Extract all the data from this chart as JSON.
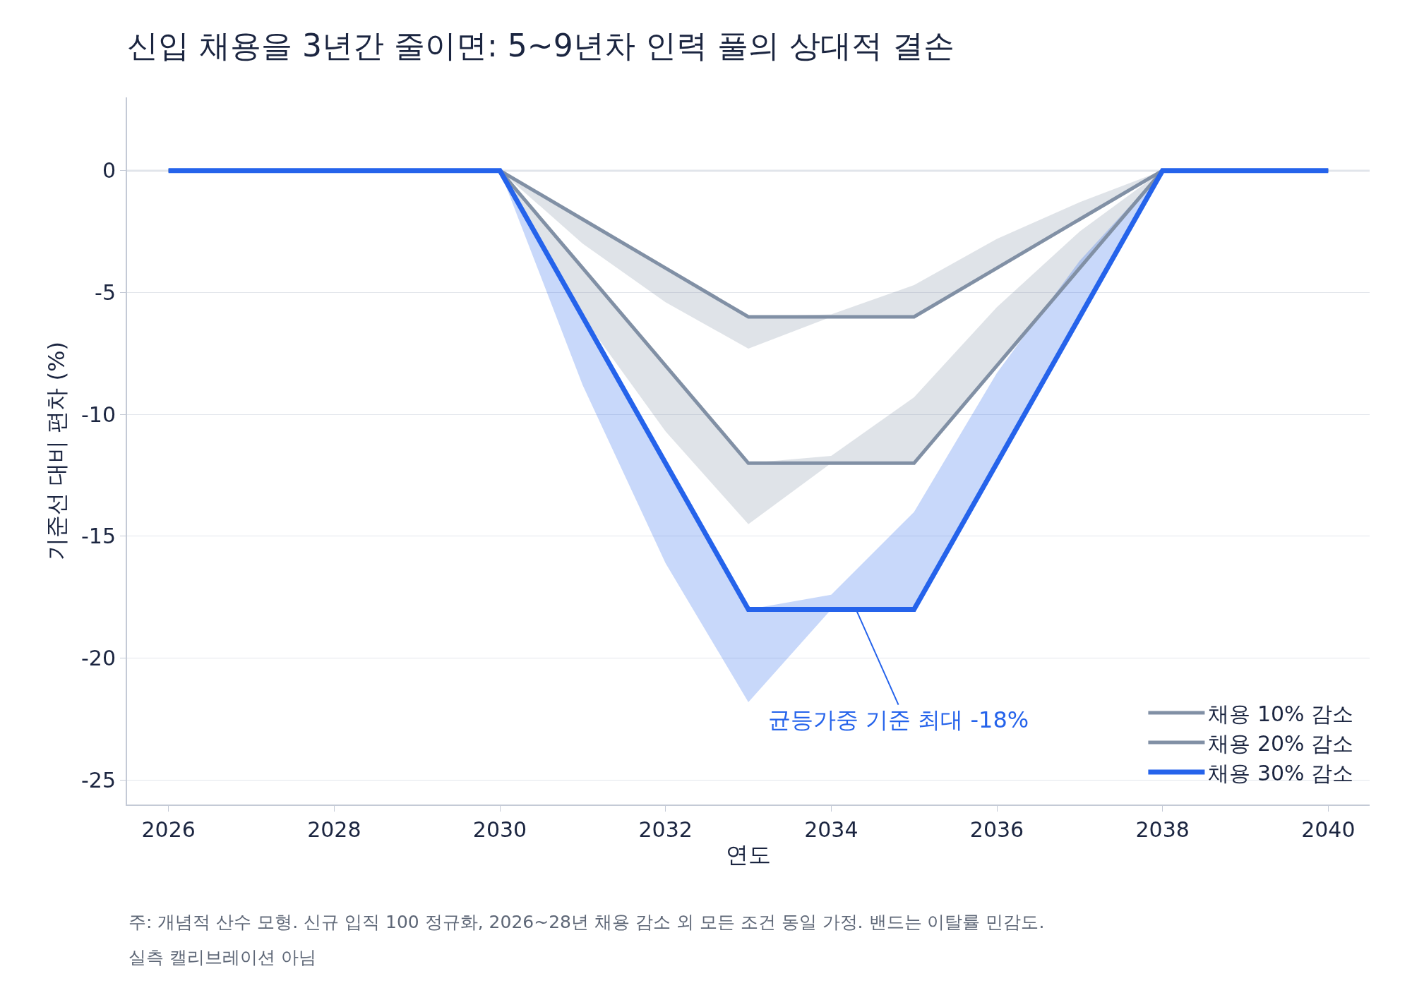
{
  "chart_data": {
    "type": "line",
    "title": "신입 채용을 3년간 줄이면: 5~9년차 인력 풀의 상대적 결손",
    "xlabel": "연도",
    "ylabel": "기준선 대비 편차 (%)",
    "x": [
      2026,
      2027,
      2028,
      2029,
      2030,
      2031,
      2032,
      2033,
      2034,
      2035,
      2036,
      2037,
      2038,
      2039,
      2040
    ],
    "series": [
      {
        "name": "채용 10% 감소",
        "color": "#8190a5",
        "values": [
          0,
          0,
          0,
          0,
          0,
          -2,
          -4,
          -6,
          -6,
          -6,
          -4,
          -2,
          0,
          0,
          0
        ],
        "lower": [
          null,
          null,
          null,
          null,
          0,
          -3.0,
          -5.4,
          -7.3,
          -6.0,
          -6.0,
          -4.0,
          -2.0,
          0,
          null,
          null
        ],
        "upper": [
          null,
          null,
          null,
          null,
          0,
          -2.0,
          -4.0,
          -6.0,
          -5.9,
          -4.7,
          -2.8,
          -1.3,
          0,
          null,
          null
        ]
      },
      {
        "name": "채용 20% 감소",
        "color": "#8190a5",
        "values": [
          0,
          0,
          0,
          0,
          0,
          -4,
          -8,
          -12,
          -12,
          -12,
          -8,
          -4,
          0,
          0,
          0
        ],
        "lower": [
          null,
          null,
          null,
          null,
          0,
          -6.0,
          -10.7,
          -14.5,
          -12.0,
          -12.0,
          -8.0,
          -4.0,
          0,
          null,
          null
        ],
        "upper": [
          null,
          null,
          null,
          null,
          0,
          -4.0,
          -8.0,
          -12.0,
          -11.7,
          -9.3,
          -5.6,
          -2.5,
          0,
          null,
          null
        ]
      },
      {
        "name": "채용 30% 감소",
        "color": "#2563eb",
        "values": [
          0,
          0,
          0,
          0,
          0,
          -6,
          -12,
          -18,
          -18,
          -18,
          -12,
          -6,
          0,
          0,
          0
        ],
        "lower": [
          null,
          null,
          null,
          null,
          0,
          -8.8,
          -16.1,
          -21.8,
          -18.0,
          -18.0,
          -12.0,
          -6.0,
          0,
          null,
          null
        ],
        "upper": [
          null,
          null,
          null,
          null,
          0,
          -6.0,
          -12.0,
          -18.0,
          -17.4,
          -14.0,
          -8.3,
          -3.7,
          0,
          null,
          null
        ]
      }
    ],
    "xlim": [
      2025.5,
      2040.5
    ],
    "ylim": [
      -26,
      3
    ],
    "xticks": [
      2026,
      2028,
      2030,
      2032,
      2034,
      2036,
      2038,
      2040
    ],
    "yticks": [
      0,
      -5,
      -10,
      -15,
      -20,
      -25
    ],
    "ref_lines": [
      {
        "axis": "y",
        "value": 0,
        "label": null,
        "color": "#c4cad6"
      }
    ],
    "annotations": [
      {
        "text": "균등가중 기준 최대 -18%",
        "x": 2034.3,
        "y": -18
      },
      "주: 개념적 산수 모형. 신규 입직 100 정규화, 2026~28년 채용 감소 외 모든 조건 동일 가정. 밴드는 이탈률 민감도.",
      "실측 캘리브레이션 아님"
    ],
    "grid": "y",
    "legend": "bottom right",
    "marker": "none",
    "line_style": "solid"
  }
}
